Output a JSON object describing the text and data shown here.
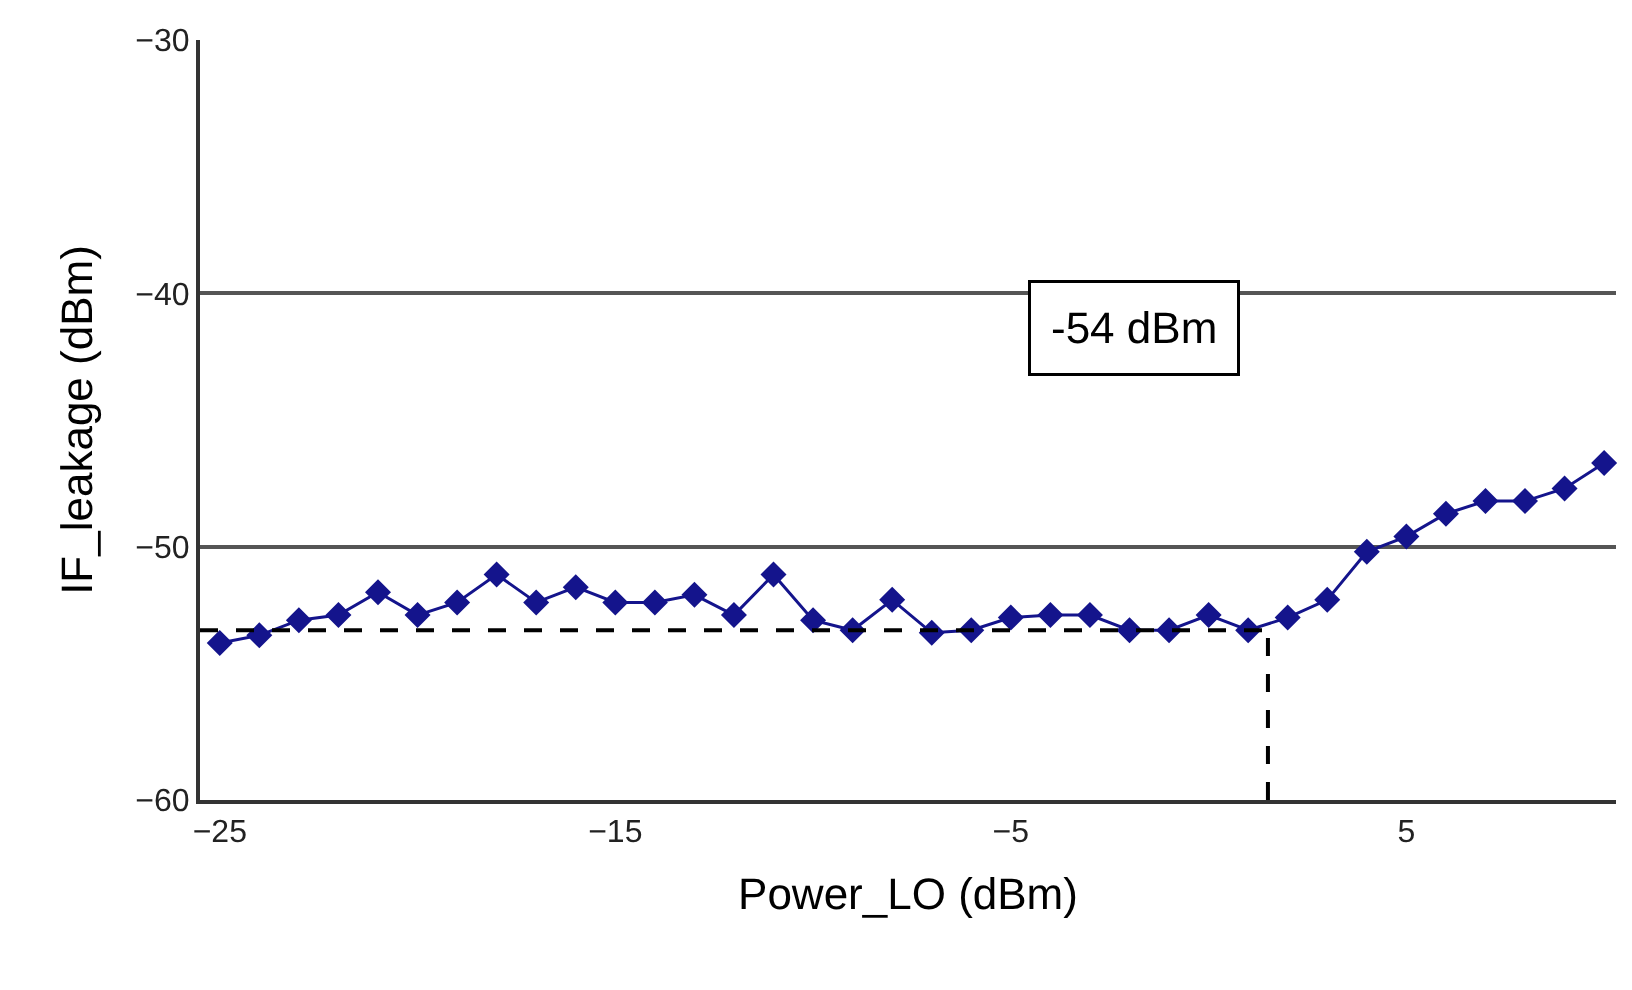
{
  "chart_data": {
    "type": "line",
    "xlabel": "Power_LO (dBm)",
    "ylabel": "IF_leakage (dBm)",
    "x": [
      -25,
      -24,
      -23,
      -22,
      -21,
      -20,
      -19,
      -18,
      -17,
      -16,
      -15,
      -14,
      -13,
      -12,
      -11,
      -10,
      -9,
      -8,
      -7,
      -6,
      -5,
      -4,
      -3,
      -2,
      -1,
      0,
      1,
      2,
      3,
      4,
      5,
      6,
      7,
      8,
      9,
      10
    ],
    "series": [
      {
        "color": "#14148c",
        "marker": "diamond",
        "line_style": "solid",
        "values": [
          -53.8,
          -53.5,
          -52.9,
          -52.7,
          -51.8,
          -52.7,
          -52.2,
          -51.1,
          -52.2,
          -51.6,
          -52.2,
          -52.2,
          -51.9,
          -52.7,
          -51.1,
          -52.9,
          -53.3,
          -52.1,
          -53.4,
          -53.3,
          -52.8,
          -52.7,
          -52.7,
          -53.3,
          -53.3,
          -52.7,
          -53.3,
          -52.8,
          -52.1,
          -50.2,
          -49.6,
          -48.7,
          -48.2,
          -48.2,
          -47.7,
          -46.7
        ]
      }
    ],
    "ref_lines": [
      {
        "axis": "y",
        "value": -53.3,
        "color": "#000000",
        "line_style": "dashed"
      },
      {
        "axis": "x",
        "value": 1.5,
        "color": "#000000",
        "line_style": "dashed"
      }
    ],
    "xlim": [
      -25.5,
      10.3
    ],
    "xticks": [
      -25,
      -15,
      -5,
      5
    ],
    "ylim": [
      -60,
      -30
    ],
    "yticks": [
      -60,
      -50,
      -40,
      -30
    ],
    "grid": "y",
    "annotations": [
      "-54 dBm"
    ]
  }
}
